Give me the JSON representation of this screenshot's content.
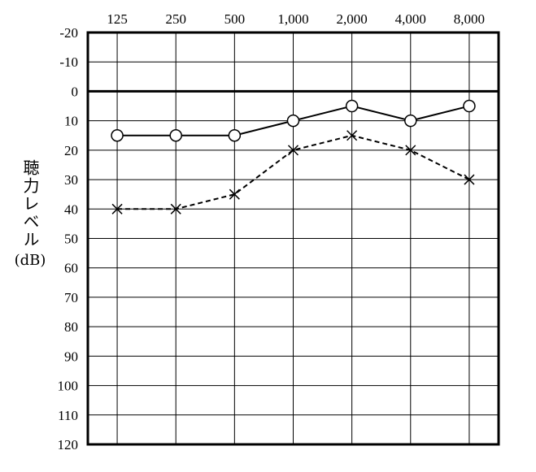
{
  "chart_data": {
    "type": "line",
    "x_categories": [
      "125",
      "250",
      "500",
      "1,000",
      "2,000",
      "4,000",
      "8,000"
    ],
    "y_ticks": [
      "-20",
      "-10",
      "0",
      "10",
      "20",
      "30",
      "40",
      "50",
      "60",
      "70",
      "80",
      "90",
      "100",
      "110",
      "120"
    ],
    "ylim": [
      -20,
      120
    ],
    "y_inverted": true,
    "ylabel": "聴力レベル",
    "ylabel_unit": "(dB)",
    "xlabel": "",
    "title": "",
    "grid": true,
    "emphasized_line_y": 0,
    "series": [
      {
        "marker": "circle",
        "line_style": "solid",
        "values": [
          15,
          15,
          15,
          10,
          5,
          10,
          5
        ]
      },
      {
        "marker": "cross",
        "line_style": "dashed",
        "values": [
          40,
          40,
          35,
          20,
          15,
          20,
          30
        ]
      }
    ]
  }
}
